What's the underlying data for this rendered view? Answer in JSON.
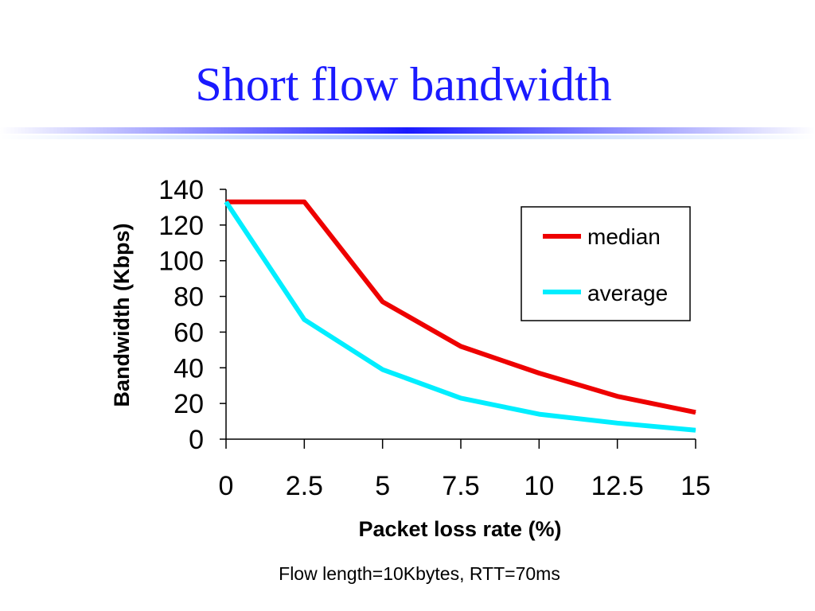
{
  "slide": {
    "title": "Short flow bandwidth",
    "caption": "Flow length=10Kbytes, RTT=70ms"
  },
  "colors": {
    "title": "#1a1aff",
    "median": "#ee0000",
    "average": "#00eeff"
  },
  "chart_data": {
    "type": "line",
    "xlabel": "Packet loss rate (%)",
    "ylabel": "Bandwidth (Kbps)",
    "xlim": [
      0,
      15
    ],
    "ylim": [
      0,
      140
    ],
    "x_ticks": [
      "0",
      "2.5",
      "5",
      "7.5",
      "10",
      "12.5",
      "15"
    ],
    "y_ticks": [
      "0",
      "20",
      "40",
      "60",
      "80",
      "100",
      "120",
      "140"
    ],
    "grid": false,
    "legend_position": "top-right",
    "series": [
      {
        "name": "median",
        "color": "#ee0000",
        "x": [
          0,
          2.5,
          5,
          7.5,
          10,
          12.5,
          15
        ],
        "y": [
          133,
          133,
          77,
          52,
          37,
          24,
          15
        ]
      },
      {
        "name": "average",
        "color": "#00eeff",
        "x": [
          0,
          2.5,
          5,
          7.5,
          10,
          12.5,
          15
        ],
        "y": [
          133,
          67,
          39,
          23,
          14,
          9,
          5
        ]
      }
    ]
  }
}
